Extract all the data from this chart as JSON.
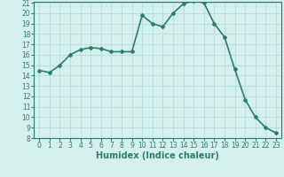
{
  "x": [
    0,
    1,
    2,
    3,
    4,
    5,
    6,
    7,
    8,
    9,
    10,
    11,
    12,
    13,
    14,
    15,
    16,
    17,
    18,
    19,
    20,
    21,
    22,
    23
  ],
  "y": [
    14.5,
    14.3,
    15.0,
    16.0,
    16.5,
    16.7,
    16.6,
    16.3,
    16.3,
    16.3,
    19.8,
    19.0,
    18.7,
    20.0,
    20.9,
    21.2,
    21.0,
    19.0,
    17.7,
    14.6,
    11.7,
    10.0,
    9.0,
    8.5
  ],
  "xlabel": "Humidex (Indice chaleur)",
  "ylim": [
    8,
    21
  ],
  "xlim": [
    -0.5,
    23.5
  ],
  "yticks": [
    8,
    9,
    10,
    11,
    12,
    13,
    14,
    15,
    16,
    17,
    18,
    19,
    20,
    21
  ],
  "xticks": [
    0,
    1,
    2,
    3,
    4,
    5,
    6,
    7,
    8,
    9,
    10,
    11,
    12,
    13,
    14,
    15,
    16,
    17,
    18,
    19,
    20,
    21,
    22,
    23
  ],
  "line_color": "#2d7d6d",
  "bg_color": "#d4f0ed",
  "grid_color": "#b0d8d4",
  "marker": "D",
  "marker_size": 2,
  "line_width": 1.2,
  "xlabel_fontsize": 7,
  "tick_fontsize": 5.5
}
